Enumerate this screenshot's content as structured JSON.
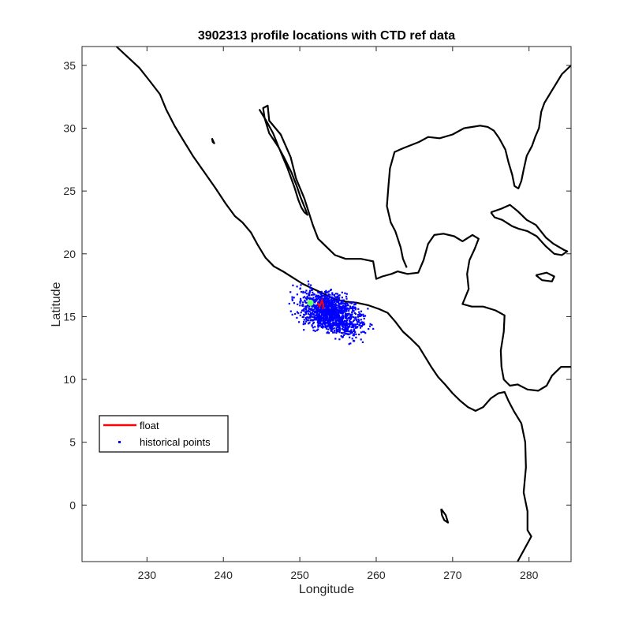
{
  "chart_data": {
    "type": "scatter",
    "title": "3902313 profile locations with CTD ref data",
    "xlabel": "Longitude",
    "ylabel": "Latitude",
    "xlim": [
      221.5,
      285.5
    ],
    "ylim": [
      -4.5,
      36.5
    ],
    "xticks": [
      230,
      240,
      250,
      260,
      270,
      280
    ],
    "yticks": [
      0,
      5,
      10,
      15,
      20,
      25,
      30,
      35
    ],
    "grid": false,
    "legend_position": "lower-left",
    "legend": [
      {
        "name": "float",
        "color": "#ff0000",
        "marker": "line"
      },
      {
        "name": "historical points",
        "color": "#0000ff",
        "marker": "dot"
      }
    ],
    "series": [
      {
        "name": "historical points",
        "color": "#0000ff",
        "cluster": {
          "center": [
            254.0,
            15.3
          ],
          "spread_lon": 3.6,
          "spread_lat": 1.4,
          "count": 1400
        }
      },
      {
        "name": "float",
        "color": "#ff0000",
        "x": [
          252.3,
          252.6,
          252.9,
          253.1,
          253.0
        ],
        "y": [
          16.1,
          15.8,
          16.3,
          15.9,
          15.6
        ]
      },
      {
        "name": "float start",
        "color": "#66ff66",
        "x": [
          251.4
        ],
        "y": [
          16.1
        ]
      }
    ],
    "coastline_color": "#000000",
    "coastlines": [
      [
        [
          226.0,
          36.5
        ],
        [
          229.0,
          34.8
        ],
        [
          230.3,
          33.8
        ],
        [
          231.7,
          32.7
        ],
        [
          232.5,
          31.5
        ],
        [
          233.6,
          30.2
        ],
        [
          234.8,
          29.0
        ],
        [
          236.0,
          27.8
        ],
        [
          237.5,
          26.5
        ],
        [
          239.0,
          25.2
        ],
        [
          240.3,
          24.0
        ],
        [
          241.5,
          23.0
        ],
        [
          242.5,
          22.5
        ],
        [
          243.6,
          21.7
        ],
        [
          244.5,
          20.7
        ],
        [
          245.5,
          19.7
        ],
        [
          246.6,
          19.0
        ],
        [
          247.8,
          18.6
        ],
        [
          249.1,
          18.1
        ],
        [
          250.4,
          17.6
        ],
        [
          251.8,
          17.2
        ],
        [
          253.2,
          16.8
        ],
        [
          254.5,
          16.4
        ],
        [
          256.0,
          16.2
        ],
        [
          257.5,
          16.1
        ],
        [
          259.0,
          15.9
        ],
        [
          260.4,
          15.6
        ],
        [
          261.5,
          15.3
        ],
        [
          262.5,
          14.6
        ],
        [
          263.5,
          13.8
        ],
        [
          264.6,
          13.2
        ],
        [
          265.6,
          12.6
        ],
        [
          266.4,
          11.8
        ],
        [
          267.2,
          11.0
        ],
        [
          268.1,
          10.2
        ],
        [
          269.0,
          9.6
        ],
        [
          270.0,
          8.9
        ],
        [
          271.0,
          8.3
        ],
        [
          272.0,
          7.8
        ],
        [
          273.0,
          7.5
        ],
        [
          274.0,
          7.8
        ],
        [
          275.0,
          8.5
        ],
        [
          276.0,
          8.9
        ],
        [
          276.8,
          9.0
        ],
        [
          277.3,
          8.3
        ],
        [
          278.0,
          7.5
        ],
        [
          279.0,
          6.5
        ],
        [
          279.5,
          5.0
        ],
        [
          279.6,
          3.0
        ],
        [
          279.3,
          1.0
        ],
        [
          279.8,
          -0.5
        ],
        [
          279.8,
          -2.0
        ],
        [
          280.3,
          -2.5
        ],
        [
          278.5,
          -4.5
        ]
      ],
      [
        [
          244.7,
          31.5
        ],
        [
          245.6,
          30.6
        ],
        [
          246.5,
          29.6
        ],
        [
          247.3,
          28.4
        ],
        [
          248.4,
          26.8
        ],
        [
          249.3,
          25.3
        ],
        [
          249.8,
          24.3
        ],
        [
          250.2,
          23.7
        ],
        [
          250.6,
          23.3
        ],
        [
          251.0,
          23.1
        ],
        [
          250.7,
          23.6
        ],
        [
          250.1,
          24.5
        ],
        [
          249.6,
          25.4
        ],
        [
          248.9,
          26.5
        ],
        [
          248.0,
          27.6
        ],
        [
          247.2,
          28.5
        ],
        [
          246.0,
          29.6
        ],
        [
          245.4,
          30.8
        ],
        [
          245.2,
          31.6
        ],
        [
          245.8,
          31.8
        ],
        [
          246.0,
          30.6
        ],
        [
          247.5,
          29.5
        ],
        [
          248.8,
          27.7
        ],
        [
          249.5,
          26.0
        ],
        [
          250.6,
          24.4
        ],
        [
          251.7,
          22.3
        ],
        [
          252.4,
          21.2
        ],
        [
          254.6,
          19.9
        ],
        [
          256.0,
          19.6
        ],
        [
          258.0,
          19.6
        ],
        [
          259.6,
          19.4
        ],
        [
          260.0,
          18.0
        ],
        [
          260.8,
          18.2
        ],
        [
          262.0,
          18.4
        ],
        [
          262.8,
          18.6
        ],
        [
          264.1,
          18.4
        ],
        [
          265.5,
          18.5
        ],
        [
          266.2,
          19.5
        ],
        [
          266.8,
          20.8
        ],
        [
          267.6,
          21.5
        ],
        [
          268.8,
          21.6
        ],
        [
          270.2,
          21.4
        ],
        [
          271.3,
          21.0
        ],
        [
          272.6,
          21.5
        ],
        [
          273.4,
          21.2
        ],
        [
          272.9,
          20.4
        ],
        [
          272.2,
          19.5
        ],
        [
          271.9,
          18.4
        ],
        [
          272.1,
          17.2
        ],
        [
          271.3,
          16.0
        ],
        [
          272.5,
          15.8
        ],
        [
          274.0,
          15.8
        ],
        [
          275.6,
          15.5
        ],
        [
          276.8,
          15.1
        ],
        [
          276.7,
          13.8
        ],
        [
          276.3,
          12.3
        ],
        [
          276.4,
          11.0
        ],
        [
          276.7,
          10.0
        ],
        [
          277.5,
          9.5
        ],
        [
          278.5,
          9.6
        ],
        [
          279.8,
          9.2
        ],
        [
          281.2,
          9.1
        ],
        [
          282.3,
          9.5
        ],
        [
          283.0,
          10.3
        ],
        [
          284.2,
          11.0
        ],
        [
          285.5,
          11.0
        ]
      ],
      [
        [
          271.5,
          30.0
        ],
        [
          270.0,
          29.5
        ],
        [
          268.3,
          29.2
        ],
        [
          266.8,
          29.3
        ],
        [
          265.6,
          28.9
        ],
        [
          263.5,
          28.4
        ],
        [
          262.4,
          28.1
        ],
        [
          261.8,
          26.8
        ],
        [
          261.6,
          25.4
        ],
        [
          261.4,
          23.8
        ],
        [
          261.9,
          22.5
        ],
        [
          262.5,
          21.8
        ],
        [
          263.2,
          20.5
        ],
        [
          263.5,
          19.6
        ],
        [
          264.0,
          18.9
        ]
      ],
      [
        [
          271.5,
          30.0
        ],
        [
          272.6,
          30.1
        ],
        [
          273.6,
          30.2
        ],
        [
          274.6,
          30.1
        ],
        [
          275.4,
          29.8
        ],
        [
          276.1,
          29.2
        ],
        [
          276.9,
          28.3
        ],
        [
          277.3,
          27.3
        ],
        [
          277.8,
          26.3
        ],
        [
          278.1,
          25.4
        ],
        [
          278.6,
          25.2
        ],
        [
          279.0,
          25.8
        ],
        [
          279.3,
          26.7
        ],
        [
          279.7,
          27.8
        ],
        [
          280.4,
          28.6
        ],
        [
          280.8,
          29.3
        ],
        [
          281.3,
          30.0
        ],
        [
          281.6,
          31.3
        ],
        [
          282.0,
          32.0
        ],
        [
          282.8,
          32.8
        ],
        [
          283.5,
          33.5
        ],
        [
          284.3,
          34.3
        ],
        [
          285.5,
          35.0
        ]
      ],
      [
        [
          275.0,
          23.3
        ],
        [
          276.4,
          23.6
        ],
        [
          277.5,
          23.9
        ],
        [
          278.5,
          23.4
        ],
        [
          279.7,
          22.7
        ],
        [
          280.9,
          22.3
        ],
        [
          282.2,
          21.3
        ],
        [
          283.2,
          20.8
        ],
        [
          284.6,
          20.3
        ],
        [
          285.0,
          20.2
        ],
        [
          284.3,
          19.9
        ],
        [
          283.3,
          20.0
        ],
        [
          282.2,
          20.6
        ],
        [
          281.0,
          21.4
        ],
        [
          279.8,
          21.8
        ],
        [
          278.6,
          22.0
        ],
        [
          277.8,
          22.2
        ],
        [
          276.5,
          22.7
        ],
        [
          275.5,
          22.9
        ],
        [
          275.0,
          23.3
        ]
      ],
      [
        [
          280.9,
          18.3
        ],
        [
          282.3,
          18.5
        ],
        [
          283.3,
          18.2
        ],
        [
          283.0,
          17.8
        ],
        [
          281.7,
          17.9
        ],
        [
          280.9,
          18.3
        ]
      ],
      [
        [
          268.5,
          -0.3
        ],
        [
          269.1,
          -0.8
        ],
        [
          269.4,
          -1.4
        ],
        [
          268.9,
          -1.2
        ],
        [
          268.6,
          -0.8
        ],
        [
          268.5,
          -0.3
        ]
      ],
      [
        [
          238.5,
          29.2
        ],
        [
          238.8,
          28.8
        ],
        [
          238.6,
          28.9
        ],
        [
          238.5,
          29.2
        ]
      ]
    ]
  }
}
